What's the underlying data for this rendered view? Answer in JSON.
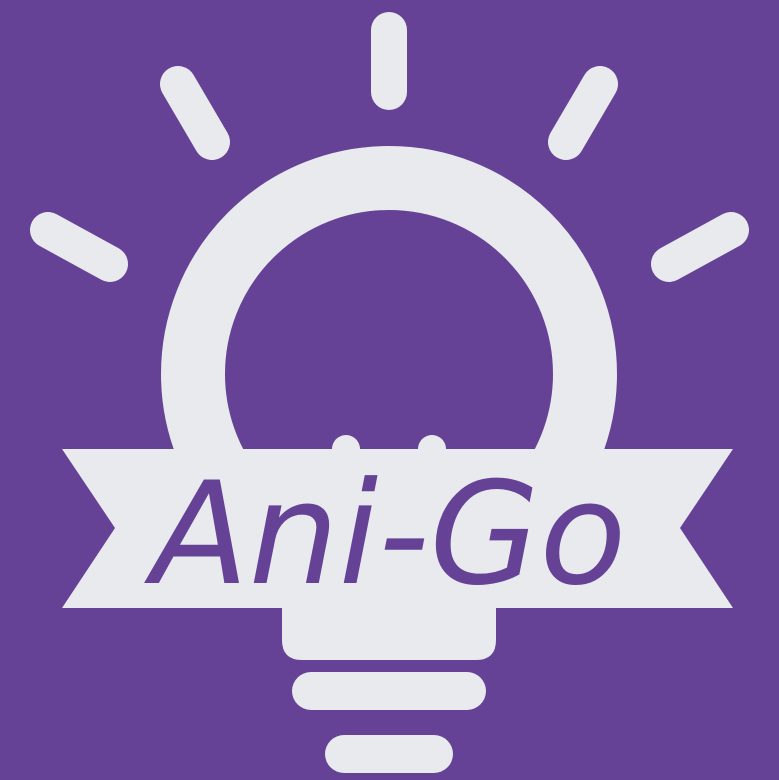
{
  "logo": {
    "wordmark": "Ani-Go",
    "icon": "lightbulb-icon",
    "colors": {
      "background": "#654296",
      "foreground": "#E8EAED",
      "text": "#654296"
    }
  }
}
